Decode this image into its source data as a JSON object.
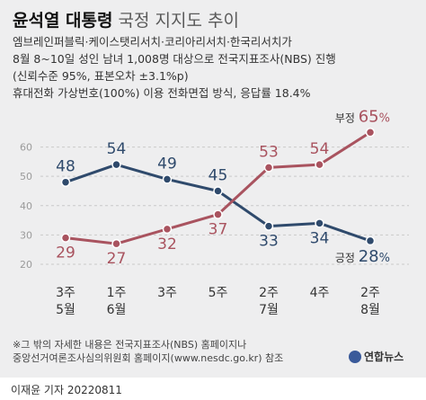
{
  "header": {
    "title_strong": "윤석열 대통령",
    "title_light": "국정 지지도 추이",
    "lines": [
      "엠브레인퍼블릭·케이스탯리서치·코리아리서치·한국리서치가",
      "8월 8~10일 성인 남녀 1,008명 대상으로 전국지표조사(NBS) 진행",
      "(신뢰수준 95%, 표본오차 ±3.1%p)",
      "휴대전화 가상번호(100%) 이용 전화면접 방식, 응답률 18.4%"
    ]
  },
  "chart_data": {
    "type": "line",
    "categories": [
      [
        "3주",
        "5월"
      ],
      [
        "1주",
        "6월"
      ],
      [
        "3주",
        ""
      ],
      [
        "5주",
        ""
      ],
      [
        "2주",
        "7월"
      ],
      [
        "4주",
        ""
      ],
      [
        "2주",
        "8월"
      ]
    ],
    "series": [
      {
        "name": "긍정",
        "values": [
          48,
          54,
          49,
          45,
          33,
          34,
          28
        ],
        "color": "#2f4a6c",
        "last_label": "28",
        "unit": "%"
      },
      {
        "name": "부정",
        "values": [
          29,
          27,
          32,
          37,
          53,
          54,
          65
        ],
        "color": "#a9535f",
        "last_label": "65",
        "unit": "%"
      }
    ],
    "yticks": [
      20,
      30,
      40,
      50,
      60
    ],
    "ylim": [
      20,
      66
    ],
    "grid": true
  },
  "notes": [
    "※그 밖의 자세한 내용은 전국지표조사(NBS) 홈페이지나",
    "중앙선거여론조사심의위원회 홈페이지(www.nesdc.go.kr) 참조"
  ],
  "logo_text": "연합뉴스",
  "footer": "이재윤 기자  20220811"
}
